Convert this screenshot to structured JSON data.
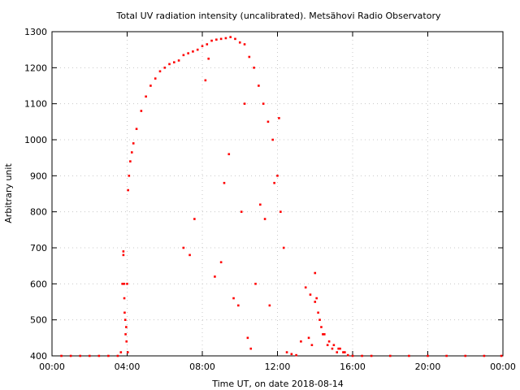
{
  "chart_data": {
    "type": "scatter",
    "title": "Total UV radiation intensity (uncalibrated). Metsähovi Radio Observatory",
    "xlabel": "Time UT, on date 2018-08-14",
    "ylabel": "Arbitrary unit",
    "xlim": [
      "00:00",
      "24:00"
    ],
    "ylim": [
      400,
      1300
    ],
    "xticks": [
      "00:00",
      "04:00",
      "08:00",
      "12:00",
      "16:00",
      "20:00",
      "00:00"
    ],
    "yticks": [
      "400",
      "500",
      "600",
      "700",
      "800",
      "900",
      "1000",
      "1100",
      "1200",
      "1300"
    ],
    "grid": true,
    "legend": "none",
    "marker_color": "#ff0000",
    "series": [
      {
        "x": [
          "00:30",
          "01:00",
          "01:30",
          "02:00",
          "02:30",
          "03:00",
          "03:30",
          "03:40",
          "03:45",
          "03:48",
          "03:51",
          "03:54",
          "03:57",
          "04:00",
          "04:03",
          "04:06",
          "04:10",
          "04:15",
          "04:20",
          "04:30",
          "04:45",
          "05:00",
          "05:15",
          "05:30",
          "05:45",
          "06:00",
          "06:15",
          "06:30",
          "06:45",
          "07:00",
          "07:15",
          "07:30",
          "07:45",
          "08:00",
          "08:15",
          "08:30",
          "08:45",
          "09:00",
          "09:15",
          "09:30",
          "09:45",
          "10:00",
          "10:15",
          "10:30",
          "10:45",
          "11:00",
          "11:15",
          "11:30",
          "11:45",
          "12:00",
          "12:10",
          "12:20",
          "12:30",
          "12:45",
          "13:00",
          "13:15",
          "13:30",
          "13:45",
          "14:00",
          "14:10",
          "14:20",
          "14:30",
          "14:45",
          "15:00",
          "15:15",
          "15:30",
          "15:45",
          "16:00",
          "16:30",
          "17:00",
          "18:00",
          "19:00",
          "20:00",
          "21:00",
          "22:00",
          "23:00",
          "23:55",
          "03:48",
          "03:50",
          "03:52",
          "03:55",
          "03:58",
          "04:02",
          "07:00",
          "07:20",
          "07:35",
          "08:10",
          "08:20",
          "08:40",
          "09:00",
          "09:10",
          "09:25",
          "09:40",
          "09:55",
          "10:05",
          "10:15",
          "10:25",
          "10:35",
          "10:50",
          "11:05",
          "11:20",
          "11:35",
          "11:50",
          "12:05",
          "13:40",
          "13:50",
          "14:00",
          "14:05",
          "14:15",
          "14:25",
          "14:40",
          "14:55",
          "15:10",
          "15:20",
          "15:35"
        ],
        "y": [
          400,
          400,
          400,
          400,
          400,
          400,
          400,
          410,
          600,
          690,
          560,
          500,
          480,
          600,
          860,
          900,
          940,
          965,
          990,
          1030,
          1080,
          1120,
          1150,
          1170,
          1190,
          1200,
          1210,
          1215,
          1220,
          1235,
          1240,
          1245,
          1250,
          1260,
          1265,
          1275,
          1278,
          1280,
          1282,
          1285,
          1280,
          1270,
          1265,
          1230,
          1200,
          1150,
          1100,
          1050,
          1000,
          900,
          800,
          700,
          410,
          405,
          402,
          440,
          590,
          570,
          550,
          520,
          480,
          460,
          440,
          430,
          420,
          410,
          402,
          400,
          400,
          400,
          400,
          400,
          400,
          400,
          400,
          400,
          400,
          680,
          600,
          520,
          460,
          440,
          410,
          700,
          680,
          780,
          1165,
          1225,
          620,
          660,
          880,
          960,
          560,
          540,
          800,
          1100,
          450,
          420,
          600,
          820,
          780,
          540,
          880,
          1060,
          450,
          430,
          630,
          560,
          500,
          460,
          430,
          420,
          410,
          420,
          410
        ]
      }
    ]
  }
}
